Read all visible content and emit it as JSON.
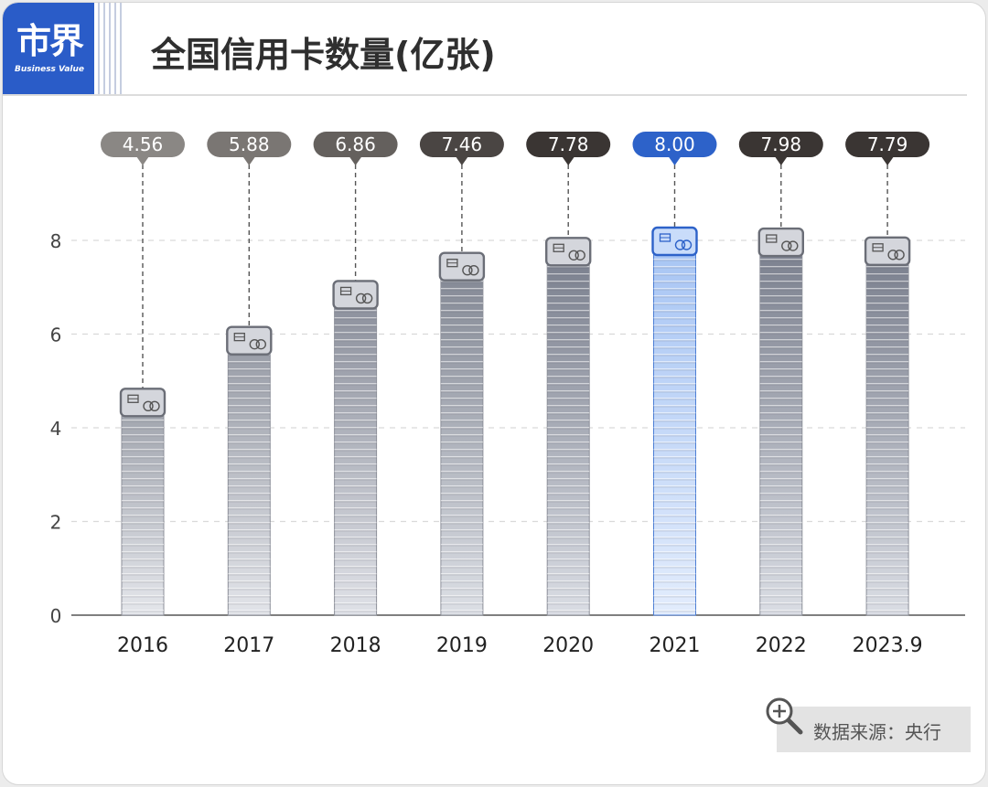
{
  "brand": {
    "logo_text": "市界",
    "logo_sub": "Business Value"
  },
  "header": {
    "title": "全国信用卡数量(亿张)"
  },
  "source": {
    "label": "数据来源：央行"
  },
  "colors": {
    "highlight": "#2d62c9",
    "label_gradient": [
      "#8a8784",
      "#7a7673",
      "#64605d",
      "#4a4543",
      "#3a3533",
      "#3a3533",
      "#3a3533",
      "#3a3533"
    ]
  },
  "chart_data": {
    "type": "bar",
    "title": "全国信用卡数量(亿张)",
    "categories": [
      "2016",
      "2017",
      "2018",
      "2019",
      "2020",
      "2021",
      "2022",
      "2023.9"
    ],
    "values": [
      4.56,
      5.88,
      6.86,
      7.46,
      7.78,
      8.0,
      7.98,
      7.79
    ],
    "data_labels": [
      "4.56",
      "5.88",
      "6.86",
      "7.46",
      "7.78",
      "8.00",
      "7.98",
      "7.79"
    ],
    "highlight_index": 5,
    "y_ticks": [
      "0",
      "2",
      "4",
      "6",
      "8"
    ],
    "y_tick_values": [
      0,
      2,
      4,
      6,
      8
    ],
    "ylim": [
      0,
      8
    ],
    "grid": true,
    "xlabel": "",
    "ylabel": ""
  }
}
